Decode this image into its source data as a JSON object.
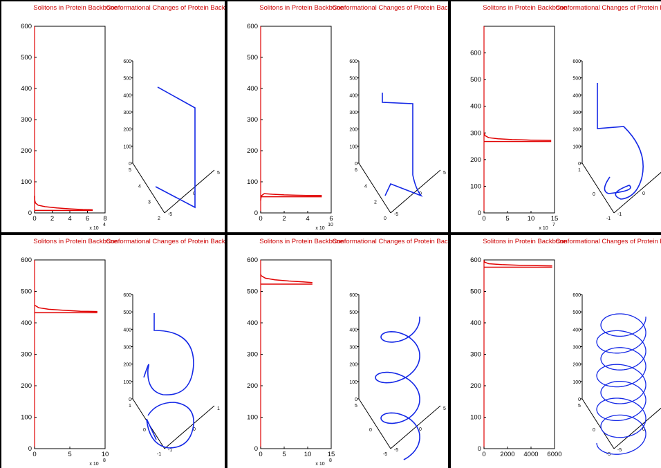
{
  "chart_data": [
    {
      "type": "line",
      "panel": 1,
      "left": {
        "title": "Solitons in Protein Backbone",
        "ylim": [
          0,
          600
        ],
        "yticks": [
          "0",
          "100",
          "200",
          "300",
          "400",
          "500",
          "600"
        ],
        "xlim": [
          0,
          8
        ],
        "xticks": [
          "0",
          "2",
          "4",
          "6",
          "8"
        ],
        "x_exponent": "x 10",
        "x_exponent_power": "4",
        "series": [
          {
            "x": [
              0,
              0.02,
              0.1,
              0.4,
              1.2,
              2.5,
              4,
              5.5,
              6.6
            ],
            "y": [
              55,
              40,
              32,
              25,
              20,
              16,
              13,
              11,
              10
            ]
          },
          {
            "x": [
              0,
              6.6
            ],
            "y": [
              8,
              8
            ]
          }
        ]
      },
      "right": {
        "title": "Conformational Changes of Protein Backbone",
        "zticks": [
          "0",
          "100",
          "200",
          "300",
          "400",
          "500",
          "600"
        ],
        "axis_a_ticks": [
          "5",
          "0",
          "-5"
        ],
        "axis_b_ticks": [
          "5",
          "4",
          "3",
          "2"
        ]
      }
    },
    {
      "type": "line",
      "panel": 2,
      "left": {
        "title": "Solitons in Protein Backbone",
        "ylim": [
          0,
          600
        ],
        "yticks": [
          "0",
          "100",
          "200",
          "300",
          "400",
          "500",
          "600"
        ],
        "xlim": [
          0,
          6
        ],
        "xticks": [
          "0",
          "2",
          "4",
          "6"
        ],
        "x_exponent": "x 10",
        "x_exponent_power": "10",
        "series": [
          {
            "x": [
              0,
              0.05,
              0.3,
              1,
              2,
              3,
              4,
              5.2
            ],
            "y": [
              40,
              55,
              62,
              60,
              58,
              57,
              56,
              56
            ]
          },
          {
            "x": [
              0,
              5.2
            ],
            "y": [
              52,
              52
            ]
          }
        ]
      },
      "right": {
        "title": "Conformational Changes of Protein Backbone",
        "zticks": [
          "0",
          "100",
          "200",
          "300",
          "400",
          "500",
          "600"
        ],
        "axis_a_ticks": [
          "5",
          "0",
          "-5"
        ],
        "axis_b_ticks": [
          "6",
          "4",
          "2",
          "0"
        ]
      }
    },
    {
      "type": "line",
      "panel": 3,
      "left": {
        "title": "Solitons in Protein Backbone",
        "ylim": [
          0,
          700
        ],
        "yticks": [
          "0",
          "100",
          "200",
          "300",
          "400",
          "500",
          "600"
        ],
        "xlim": [
          0,
          15
        ],
        "xticks": [
          "0",
          "5",
          "10",
          "15"
        ],
        "x_exponent": "x 10",
        "x_exponent_power": "7",
        "series": [
          {
            "x": [
              0,
              0.2,
              1,
              3,
              6,
              10,
              14.3
            ],
            "y": [
              300,
              290,
              282,
              278,
              275,
              273,
              272
            ]
          },
          {
            "x": [
              0,
              14.3
            ],
            "y": [
              268,
              268
            ]
          }
        ]
      },
      "right": {
        "title": "Conformational Changes of Protein Backbone",
        "zticks": [
          "0",
          "100",
          "200",
          "300",
          "400",
          "500",
          "600"
        ],
        "axis_a_ticks": [
          "1",
          "0",
          "-1"
        ],
        "axis_b_ticks": [
          "1",
          "0",
          "-1"
        ]
      }
    },
    {
      "type": "line",
      "panel": 4,
      "left": {
        "title": "Solitons in Protein Backbone",
        "ylim": [
          0,
          600
        ],
        "yticks": [
          "0",
          "100",
          "200",
          "300",
          "400",
          "500",
          "600"
        ],
        "xlim": [
          0,
          10
        ],
        "xticks": [
          "0",
          "5",
          "10"
        ],
        "x_exponent": "x 10",
        "x_exponent_power": "8",
        "series": [
          {
            "x": [
              0,
              0.1,
              0.6,
              2,
              4,
              6.5,
              8.9
            ],
            "y": [
              455,
              455,
              448,
              443,
              440,
              437,
              436
            ]
          },
          {
            "x": [
              0,
              8.9
            ],
            "y": [
              432,
              432
            ]
          }
        ]
      },
      "right": {
        "title": "Conformational Changes of Protein Backbone",
        "zticks": [
          "0",
          "100",
          "200",
          "300",
          "400",
          "500",
          "600"
        ],
        "axis_a_ticks": [
          "1",
          "0",
          "-1"
        ],
        "axis_b_ticks": [
          "1",
          "0",
          "-1"
        ]
      }
    },
    {
      "type": "line",
      "panel": 5,
      "left": {
        "title": "Solitons in Protein Backbone",
        "ylim": [
          0,
          600
        ],
        "yticks": [
          "0",
          "100",
          "200",
          "300",
          "400",
          "500",
          "600"
        ],
        "xlim": [
          0,
          15
        ],
        "xticks": [
          "0",
          "5",
          "10",
          "15"
        ],
        "x_exponent": "x 10",
        "x_exponent_power": "8",
        "series": [
          {
            "x": [
              0,
              0.1,
              1,
              3,
              6,
              9,
              11
            ],
            "y": [
              555,
              550,
              542,
              537,
              533,
              530,
              528
            ]
          },
          {
            "x": [
              0,
              11
            ],
            "y": [
              523,
              523
            ]
          }
        ]
      },
      "right": {
        "title": "Conformational Changes of Protein Backbone",
        "zticks": [
          "0",
          "100",
          "200",
          "300",
          "400",
          "500",
          "600"
        ],
        "axis_a_ticks": [
          "5",
          "0",
          "-5"
        ],
        "axis_b_ticks": [
          "5",
          "0",
          "-5"
        ]
      }
    },
    {
      "type": "line",
      "panel": 6,
      "left": {
        "title": "Solitons in Protein Backbone",
        "ylim": [
          0,
          600
        ],
        "yticks": [
          "0",
          "100",
          "200",
          "300",
          "400",
          "500",
          "600"
        ],
        "xlim": [
          0,
          6000
        ],
        "xticks": [
          "0",
          "2000",
          "4000",
          "6000"
        ],
        "x_exponent": "",
        "x_exponent_power": "",
        "series": [
          {
            "x": [
              0,
              50,
              400,
              1500,
              3000,
              4500,
              5800
            ],
            "y": [
              598,
              593,
              588,
              585,
              583,
              582,
              581
            ]
          },
          {
            "x": [
              0,
              5800
            ],
            "y": [
              577,
              577
            ]
          }
        ]
      },
      "right": {
        "title": "Conformational Changes of Protein Backbone",
        "zticks": [
          "0",
          "100",
          "200",
          "300",
          "400",
          "500",
          "600"
        ],
        "axis_a_ticks": [
          "5",
          "0",
          "-5"
        ],
        "axis_b_ticks": [
          "5",
          "0",
          "-5"
        ]
      }
    }
  ]
}
